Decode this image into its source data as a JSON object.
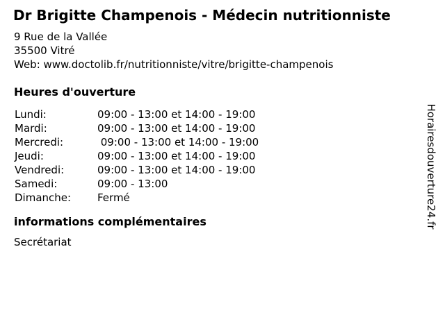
{
  "header": {
    "title": "Dr Brigitte Champenois - Médecin nutritionniste",
    "address_line1": "9 Rue de la Vallée",
    "address_line2": "35500 Vitré",
    "web_line": "Web: www.doctolib.fr/nutritionniste/vitre/brigitte-champenois"
  },
  "hours": {
    "heading": "Heures d'ouverture",
    "rows": [
      {
        "day": "Lundi:",
        "time": "09:00 - 13:00 et 14:00 - 19:00"
      },
      {
        "day": "Mardi:",
        "time": "09:00 - 13:00 et 14:00 - 19:00"
      },
      {
        "day": "Mercredi:",
        "time": " 09:00 - 13:00 et 14:00 - 19:00"
      },
      {
        "day": "Jeudi:",
        "time": "09:00 - 13:00 et 14:00 - 19:00"
      },
      {
        "day": "Vendredi:",
        "time": "09:00 - 13:00 et 14:00 - 19:00"
      },
      {
        "day": "Samedi:",
        "time": "09:00 - 13:00"
      },
      {
        "day": "Dimanche:",
        "time": "Fermé"
      }
    ]
  },
  "extra": {
    "heading": "informations complémentaires",
    "text": "Secrétariat"
  },
  "watermark": "Horairesdouverture24.fr",
  "colors": {
    "text": "#000000",
    "background": "#ffffff"
  }
}
